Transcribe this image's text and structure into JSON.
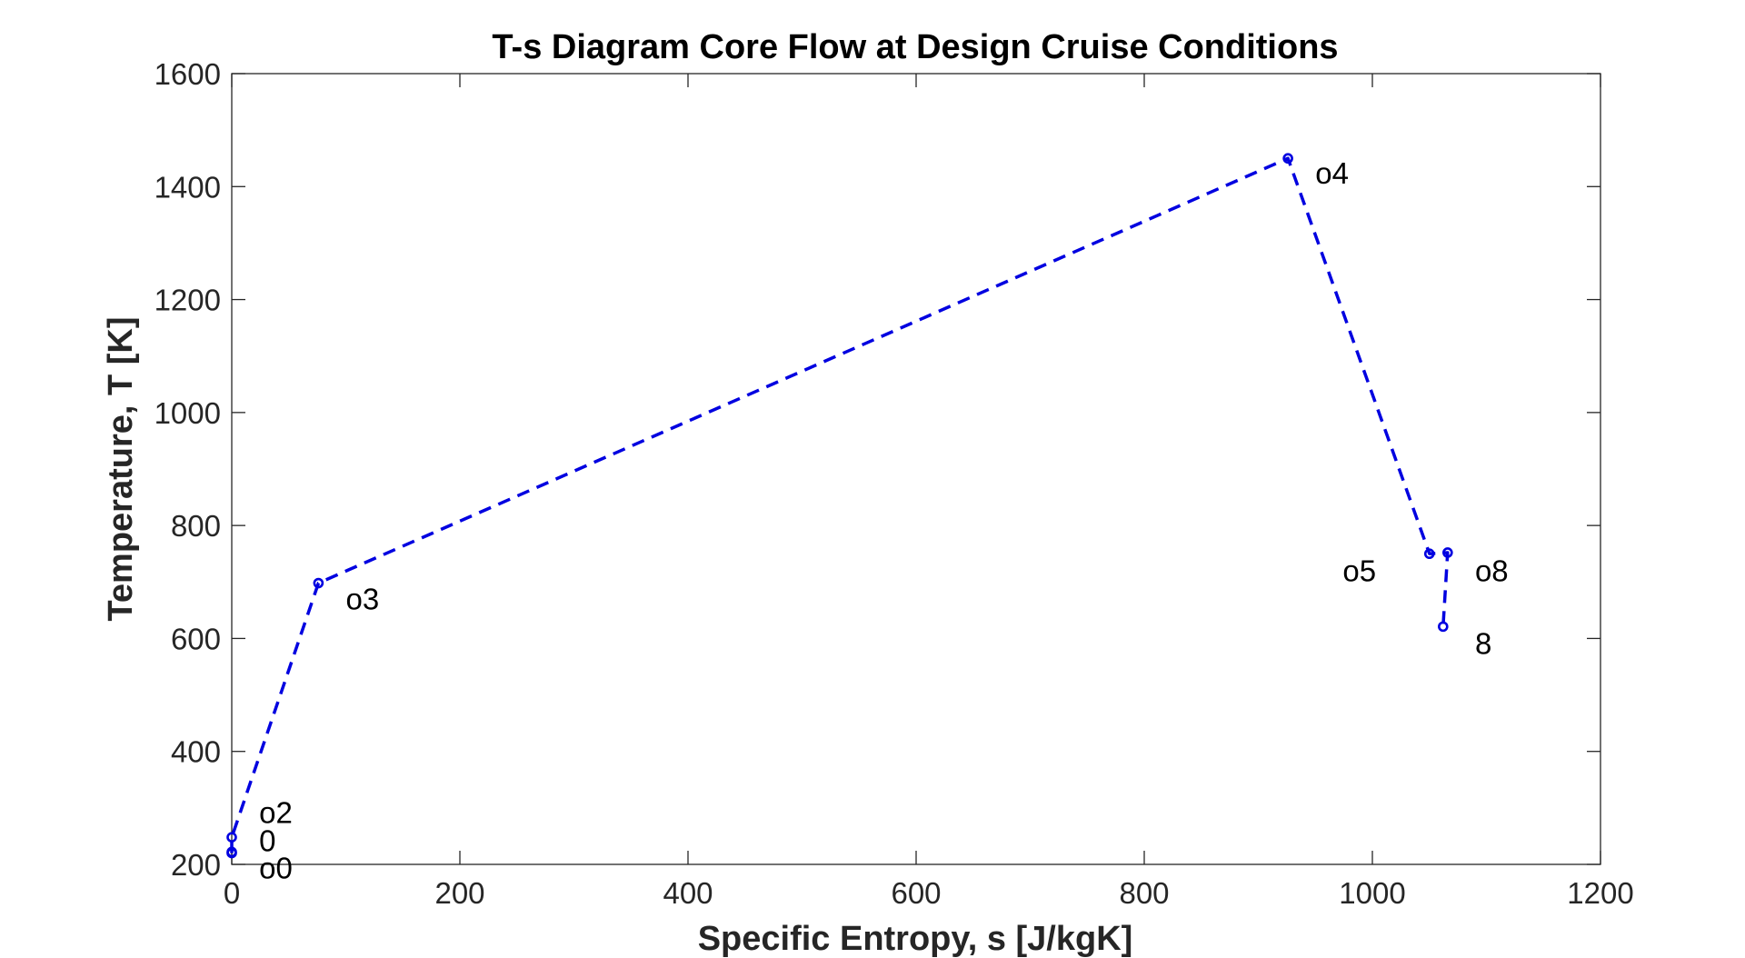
{
  "chart_data": {
    "type": "line",
    "title": "T-s Diagram Core Flow at Design Cruise Conditions",
    "xlabel": "Specific Entropy, s [J/kgK]",
    "ylabel": "Temperature, T [K]",
    "xlim": [
      0,
      1200
    ],
    "ylim": [
      200,
      1600
    ],
    "xticks": [
      0,
      200,
      400,
      600,
      800,
      1000,
      1200
    ],
    "yticks": [
      200,
      400,
      600,
      800,
      1000,
      1200,
      1400,
      1600
    ],
    "xtick_labels": [
      "0",
      "200",
      "400",
      "600",
      "800",
      "1000",
      "1200"
    ],
    "ytick_labels": [
      "200",
      "400",
      "600",
      "800",
      "1000",
      "1200",
      "1400",
      "1600"
    ],
    "grid": false,
    "legend": "none",
    "line_style": "dashed",
    "marker": "circle",
    "color": "#0000e0",
    "series": [
      {
        "points": [
          {
            "x": 0,
            "y": 220
          },
          {
            "x": 0,
            "y": 222
          },
          {
            "x": 0,
            "y": 248
          },
          {
            "x": 76,
            "y": 698
          },
          {
            "x": 926,
            "y": 1450
          },
          {
            "x": 1050,
            "y": 750
          },
          {
            "x": 1066,
            "y": 752
          },
          {
            "x": 1062,
            "y": 621
          }
        ]
      }
    ],
    "annotations": [
      {
        "text": "o2",
        "x": 24,
        "y": 291
      },
      {
        "text": "0",
        "x": 24,
        "y": 241
      },
      {
        "text": "o0",
        "x": 24,
        "y": 193
      },
      {
        "text": "o3",
        "x": 100,
        "y": 669
      },
      {
        "text": "o4",
        "x": 950,
        "y": 1423
      },
      {
        "text": "o5",
        "x": 974,
        "y": 719
      },
      {
        "text": "o8",
        "x": 1090,
        "y": 719
      },
      {
        "text": "8",
        "x": 1090,
        "y": 590
      }
    ]
  }
}
